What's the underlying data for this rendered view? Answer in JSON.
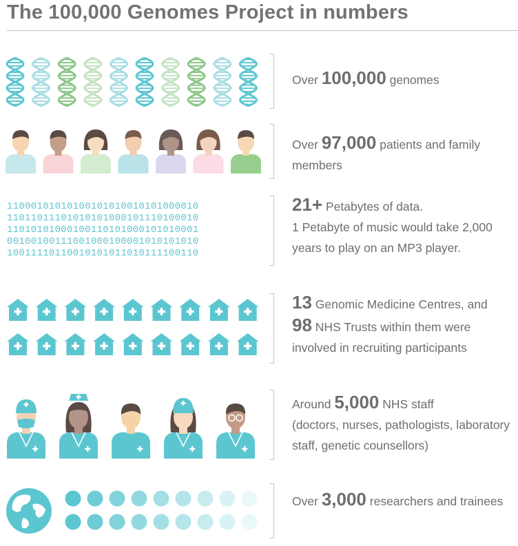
{
  "title": "The 100,000 Genomes Project in numbers",
  "colors": {
    "teal": "#5cc6d0",
    "green": "#8dc78a",
    "text": "#6e6e6e",
    "bracket": "#9fd6de"
  },
  "sections": {
    "genomes": {
      "icon": "dna-helix-icon",
      "count": 10,
      "lead": "Over",
      "number": "100,000",
      "rest": "genomes"
    },
    "patients": {
      "icon": "person-icon",
      "count": 7,
      "lead": "Over",
      "number": "97,000",
      "rest": "patients and family members"
    },
    "data": {
      "binary_lines": [
        "11000101010100101010010101000010",
        "11011011101010101000101110100010",
        "11010101000100110101000101010001",
        "00100100111001000100001010101010",
        "10011110110010101011010111100110"
      ],
      "number": "21+",
      "rest": "Petabytes of data.",
      "note": "1 Petabyte of music would take 2,000 years to play on an MP3 player."
    },
    "centres": {
      "icon": "hospital-icon",
      "count": 18,
      "number_a": "13",
      "rest_a": "Genomic Medicine Centres, and",
      "number_b": "98",
      "rest_b": "NHS Trusts within them were involved in recruiting participants"
    },
    "staff": {
      "icon": "health-worker-icon",
      "count": 5,
      "lead": "Around",
      "number": "5,000",
      "rest": "NHS staff",
      "note": "(doctors, nurses, pathologists, laboratory staff, genetic counsellors)"
    },
    "researchers": {
      "icon": "globe-icon",
      "dot_icon": "dot-icon",
      "lead": "Over",
      "number": "3,000",
      "rest": "researchers and trainees"
    }
  }
}
